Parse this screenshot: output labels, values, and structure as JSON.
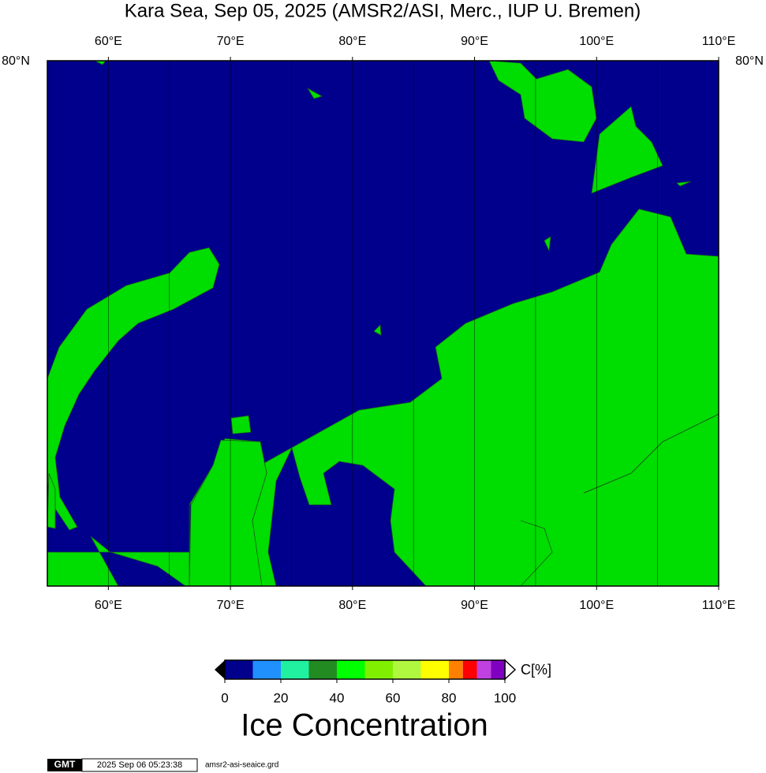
{
  "title": "Kara Sea, Sep 05, 2025 (AMSR2/ASI, Merc., IUP U. Bremen)",
  "map": {
    "lon_range": [
      55,
      110
    ],
    "lon_ticks": [
      {
        "value": 60,
        "label": "60°E"
      },
      {
        "value": 70,
        "label": "70°E"
      },
      {
        "value": 80,
        "label": "80°E"
      },
      {
        "value": 90,
        "label": "90°E"
      },
      {
        "value": 100,
        "label": "100°E"
      },
      {
        "value": 110,
        "label": "110°E"
      }
    ],
    "lon_grid": [
      60,
      65,
      70,
      75,
      80,
      85,
      90,
      95,
      100,
      105
    ],
    "lat_labels": [
      "80°N"
    ],
    "ocean_color": "#00008c",
    "land_color": "#00dd00"
  },
  "colorbar": {
    "bounds": [
      0,
      10,
      20,
      30,
      40,
      50,
      60,
      70,
      80,
      85,
      90,
      95,
      100
    ],
    "colors": [
      "#00008c",
      "#2090ff",
      "#20f0a0",
      "#228b22",
      "#00ff00",
      "#80f000",
      "#b0f840",
      "#ffff00",
      "#ff8000",
      "#ff0000",
      "#c040e0",
      "#8000c0"
    ],
    "ticks": [
      0,
      20,
      40,
      60,
      80,
      100
    ],
    "unit": "C[%]",
    "title": "Ice Concentration"
  },
  "footer": {
    "logo": "GMT",
    "timestamp": "2025 Sep 06 05:23:38",
    "file": "amsr2-asi-seaice.grd"
  }
}
